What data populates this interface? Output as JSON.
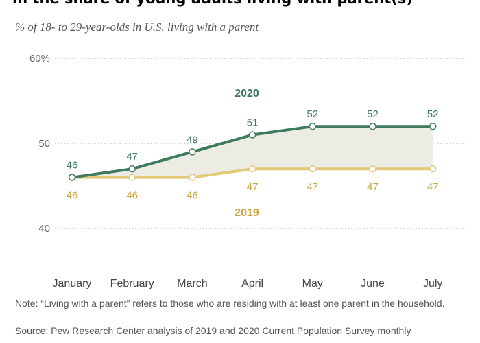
{
  "chart_data": {
    "type": "line",
    "title": "in the share of young adults living with parent(s)",
    "subtitle": "% of 18- to 29-year-olds in U.S. living with a parent",
    "categories": [
      "January",
      "February",
      "March",
      "April",
      "May",
      "June",
      "July"
    ],
    "yticks": [
      {
        "value": 60,
        "label": "60%"
      },
      {
        "value": 50,
        "label": "50"
      },
      {
        "value": 40,
        "label": "40"
      }
    ],
    "ylim": [
      40,
      60
    ],
    "series": [
      {
        "name": "2020",
        "color": "#3d7a5e",
        "values": [
          46,
          47,
          49,
          51,
          52,
          52,
          52
        ],
        "labels": [
          "46",
          "47",
          "49",
          "51",
          "52",
          "52",
          "52"
        ],
        "label_position": "above"
      },
      {
        "name": "2019",
        "color": "#e3c877",
        "values": [
          46,
          46,
          46,
          47,
          47,
          47,
          47
        ],
        "labels": [
          "46",
          "46",
          "46",
          "47",
          "47",
          "47",
          "47"
        ],
        "label_position": "below"
      }
    ],
    "shade_between_series": true,
    "shade_color": "#ecebe4",
    "label_colors": {
      "2020": "#3d7a5e",
      "2019": "#c9a742"
    }
  },
  "notes": {
    "note": "Note: “Living with a parent” refers to those who are residing with at least one parent in the household.",
    "source": "Source: Pew Research Center analysis of 2019 and 2020 Current Population Survey monthly"
  }
}
